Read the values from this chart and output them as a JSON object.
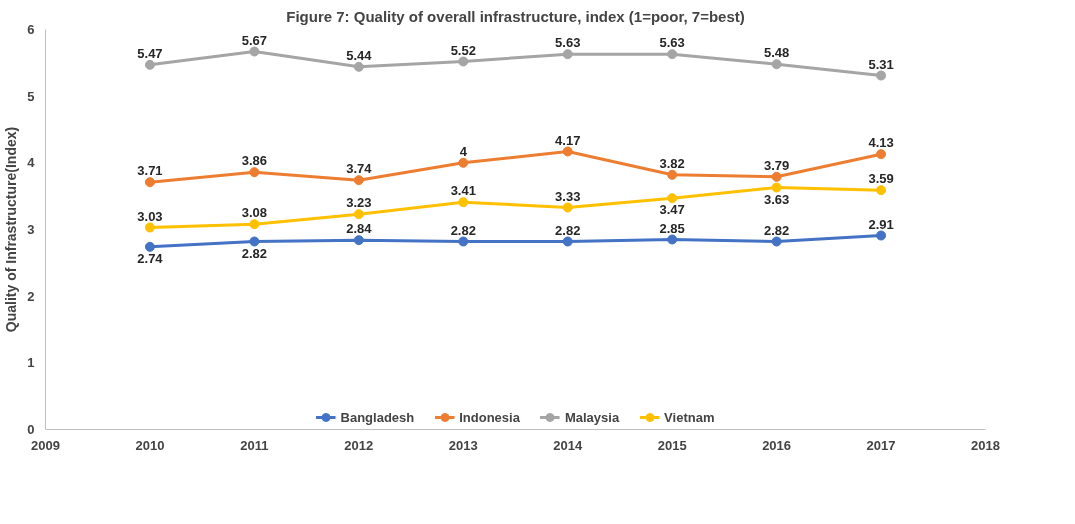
{
  "chart_data": {
    "type": "line",
    "title": "Figure 7: Quality of overall infrastructure, index (1=poor, 7=best)",
    "ylabel": "Quality of Infrastructure(Index)",
    "x": [
      2010,
      2011,
      2012,
      2013,
      2014,
      2015,
      2016,
      2017
    ],
    "xlim": [
      2009,
      2018
    ],
    "xticks": [
      2009,
      2010,
      2011,
      2012,
      2013,
      2014,
      2015,
      2016,
      2017,
      2018
    ],
    "ylim": [
      0,
      6
    ],
    "yticks": [
      0,
      1,
      2,
      3,
      4,
      5,
      6
    ],
    "grid": false,
    "legend": "bottom",
    "marker": "circle",
    "line_style": "solid",
    "data_labels": true,
    "series": [
      {
        "name": "Bangladesh",
        "color": "#4472c4",
        "values": [
          2.74,
          2.82,
          2.84,
          2.82,
          2.82,
          2.85,
          2.82,
          2.91
        ]
      },
      {
        "name": "Indonesia",
        "color": "#ed7d31",
        "values": [
          3.71,
          3.86,
          3.74,
          4,
          4.17,
          3.82,
          3.79,
          4.13
        ]
      },
      {
        "name": "Malaysia",
        "color": "#a5a5a5",
        "values": [
          5.47,
          5.67,
          5.44,
          5.52,
          5.63,
          5.63,
          5.48,
          5.31
        ]
      },
      {
        "name": "Vietnam",
        "color": "#ffc000",
        "values": [
          3.03,
          3.08,
          3.23,
          3.41,
          3.33,
          3.47,
          3.63,
          3.59
        ]
      }
    ]
  }
}
